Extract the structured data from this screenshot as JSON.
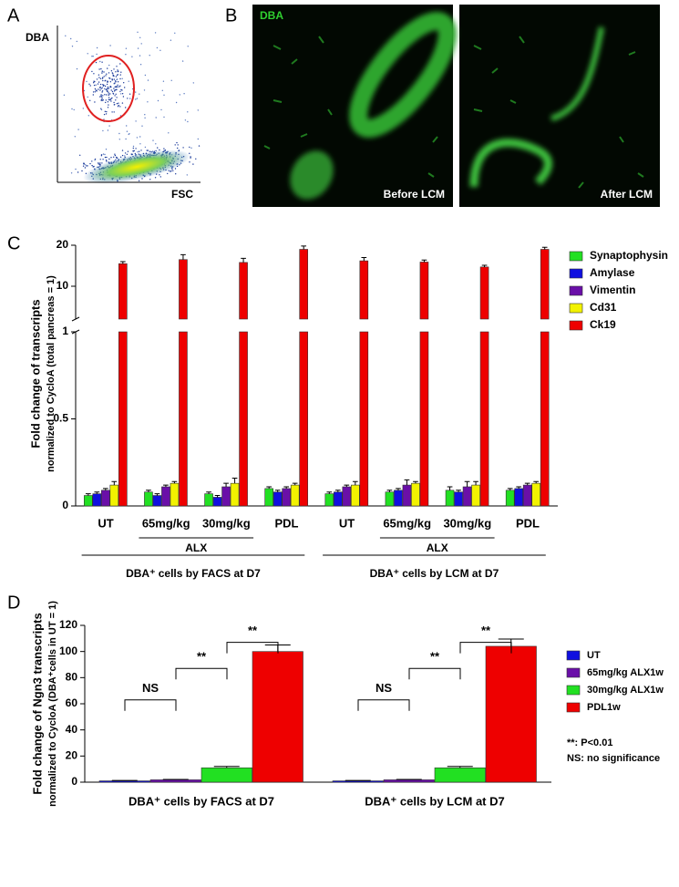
{
  "panel_a": {
    "label": "A",
    "y_label": "DBA",
    "x_label": "FSC"
  },
  "panel_b": {
    "label": "B",
    "stain": "DBA",
    "left_caption": "Before LCM",
    "right_caption": "After LCM"
  },
  "chart_data": [
    {
      "type": "bar",
      "panel": "C",
      "y_label": [
        "Fold change of transcripts",
        "normalized to CycloA (total pancreas = 1)"
      ],
      "categories": [
        "UT",
        "65mg/kg",
        "30mg/kg",
        "PDL",
        "UT",
        "65mg/kg",
        "30mg/kg",
        "PDL"
      ],
      "group_labels": [
        {
          "label": "ALX",
          "from": 1,
          "to": 2
        },
        {
          "label": "ALX",
          "from": 5,
          "to": 6
        }
      ],
      "super_groups": [
        {
          "label": "DBA⁺ cells by FACS at D7",
          "from": 0,
          "to": 3
        },
        {
          "label": "DBA⁺ cells by LCM at D7",
          "from": 4,
          "to": 7
        }
      ],
      "series": [
        {
          "name": "Synaptophysin",
          "color": "#22e022",
          "values": [
            0.06,
            0.08,
            0.07,
            0.1,
            0.07,
            0.08,
            0.09,
            0.09
          ],
          "errors": [
            0.01,
            0.01,
            0.01,
            0.01,
            0.01,
            0.01,
            0.02,
            0.01
          ]
        },
        {
          "name": "Amylase",
          "color": "#1010e0",
          "values": [
            0.07,
            0.06,
            0.05,
            0.08,
            0.08,
            0.09,
            0.08,
            0.1
          ],
          "errors": [
            0.01,
            0.01,
            0.01,
            0.01,
            0.01,
            0.01,
            0.01,
            0.01
          ]
        },
        {
          "name": "Vimentin",
          "color": "#6a0fa8",
          "values": [
            0.09,
            0.11,
            0.11,
            0.1,
            0.11,
            0.12,
            0.11,
            0.12
          ],
          "errors": [
            0.01,
            0.01,
            0.02,
            0.01,
            0.01,
            0.03,
            0.03,
            0.01
          ]
        },
        {
          "name": "Cd31",
          "color": "#f2f200",
          "values": [
            0.12,
            0.13,
            0.13,
            0.12,
            0.12,
            0.13,
            0.12,
            0.13
          ],
          "errors": [
            0.02,
            0.01,
            0.03,
            0.01,
            0.02,
            0.01,
            0.02,
            0.01
          ]
        },
        {
          "name": "Ck19",
          "color": "#ee0000",
          "values": [
            15.5,
            16.5,
            15.8,
            19,
            16.2,
            15.9,
            14.7,
            19
          ],
          "errors": [
            0.5,
            1.2,
            1,
            0.8,
            0.8,
            0.5,
            0.4,
            0.5
          ]
        }
      ],
      "ylim": [
        0,
        1
      ],
      "yticks": [
        0,
        0.5,
        1
      ],
      "ylim_upper": [
        2,
        20
      ],
      "yticks_upper": [
        10,
        20
      ]
    },
    {
      "type": "bar",
      "panel": "D",
      "y_label": [
        "Fold change of Ngn3 transcripts",
        "normalized to CycloA (DBA⁺cells in UT = 1)"
      ],
      "categories": [
        "DBA⁺ cells by FACS at D7",
        "DBA⁺ cells by LCM at D7"
      ],
      "series": [
        {
          "name": "UT",
          "color": "#1010e0",
          "values": [
            1,
            1
          ],
          "errors": [
            0.3,
            0.3
          ]
        },
        {
          "name": "65mg/kg ALX1w",
          "color": "#6a0fa8",
          "values": [
            1.8,
            1.8
          ],
          "errors": [
            0.3,
            0.3
          ]
        },
        {
          "name": "30mg/kg ALX1w",
          "color": "#22e022",
          "values": [
            11,
            11
          ],
          "errors": [
            1,
            1
          ]
        },
        {
          "name": "PDL1w",
          "color": "#ee0000",
          "values": [
            100,
            104
          ],
          "errors": [
            5,
            5.5
          ]
        }
      ],
      "brackets": [
        {
          "from": 0,
          "to": 1,
          "y": 63,
          "label": "NS"
        },
        {
          "from": 1,
          "to": 2,
          "y": 87,
          "label": "**"
        },
        {
          "from": 2,
          "to": 3,
          "y": 107,
          "label": "**"
        }
      ],
      "notes": [
        "**: P<0.01",
        "NS: no significance"
      ],
      "ylim": [
        0,
        120
      ],
      "yticks": [
        0,
        20,
        40,
        60,
        80,
        100,
        120
      ]
    }
  ]
}
